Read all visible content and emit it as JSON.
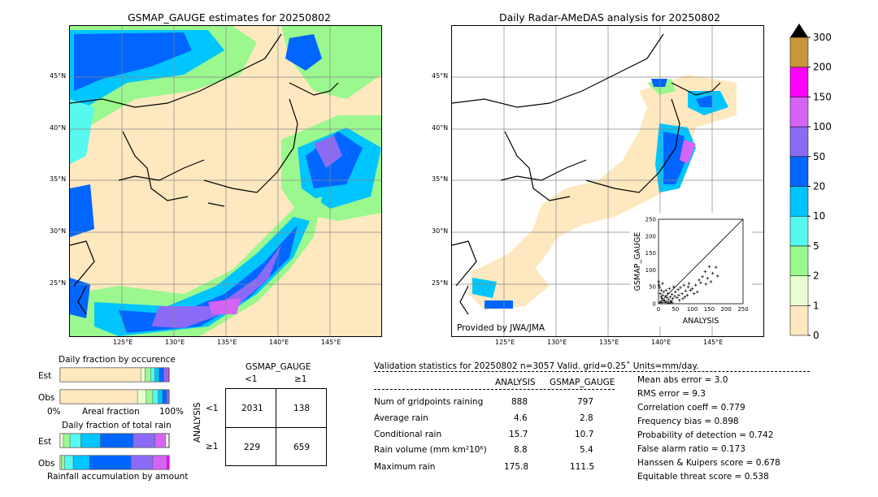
{
  "left_map": {
    "title": "GSMAP_GAUGE estimates for 20250802",
    "lat_labels": [
      "45°N",
      "40°N",
      "35°N",
      "30°N",
      "25°N"
    ],
    "lon_labels": [
      "125°E",
      "130°E",
      "135°E",
      "140°E",
      "145°E"
    ]
  },
  "right_map": {
    "title": "Daily Radar-AMeDAS analysis for 20250802",
    "lat_labels": [
      "45°N",
      "40°N",
      "35°N",
      "30°N",
      "25°N"
    ],
    "lon_labels": [
      "125°E",
      "130°E",
      "135°E",
      "140°E",
      "145°E"
    ],
    "credit": "Provided by JWA/JMA"
  },
  "colorbar": {
    "levels": [
      "0",
      "1",
      "2",
      "5",
      "10",
      "20",
      "50",
      "100",
      "150",
      "200",
      "300"
    ],
    "colors": [
      "#fde8c0",
      "#e9fcd2",
      "#9bf88e",
      "#57f8f0",
      "#00c5ff",
      "#0066ff",
      "#8b6bf5",
      "#d564f5",
      "#ff00ff",
      "#c8963c"
    ],
    "extend_color": "#000000"
  },
  "chart_data": [
    {
      "type": "scatter",
      "xlabel": "ANALYSIS",
      "ylabel": "GSMAP_GAUGE",
      "xlim": [
        0,
        250
      ],
      "ylim": [
        0,
        250
      ],
      "xticks": [
        "0",
        "25",
        "50",
        "75",
        "100",
        "125",
        "150",
        "175",
        "200",
        "225",
        "250"
      ],
      "yticks": [
        "0",
        "25",
        "50",
        "75",
        "100",
        "125",
        "150",
        "175",
        "200",
        "225",
        "250"
      ],
      "diagonal": true,
      "points": [
        [
          2,
          55
        ],
        [
          3,
          48
        ],
        [
          5,
          30
        ],
        [
          8,
          20
        ],
        [
          10,
          15
        ],
        [
          12,
          25
        ],
        [
          15,
          35
        ],
        [
          18,
          10
        ],
        [
          20,
          22
        ],
        [
          22,
          40
        ],
        [
          25,
          18
        ],
        [
          28,
          30
        ],
        [
          30,
          12
        ],
        [
          32,
          45
        ],
        [
          35,
          20
        ],
        [
          38,
          8
        ],
        [
          40,
          28
        ],
        [
          42,
          15
        ],
        [
          45,
          50
        ],
        [
          48,
          22
        ],
        [
          50,
          35
        ],
        [
          55,
          18
        ],
        [
          58,
          42
        ],
        [
          60,
          25
        ],
        [
          62,
          10
        ],
        [
          65,
          48
        ],
        [
          70,
          30
        ],
        [
          72,
          15
        ],
        [
          75,
          55
        ],
        [
          78,
          20
        ],
        [
          80,
          38
        ],
        [
          85,
          25
        ],
        [
          88,
          50
        ],
        [
          90,
          60
        ],
        [
          95,
          40
        ],
        [
          100,
          45
        ],
        [
          105,
          30
        ],
        [
          110,
          55
        ],
        [
          115,
          35
        ],
        [
          120,
          70
        ],
        [
          125,
          62
        ],
        [
          130,
          80
        ],
        [
          138,
          95
        ],
        [
          140,
          58
        ],
        [
          145,
          75
        ],
        [
          150,
          110
        ],
        [
          155,
          65
        ],
        [
          160,
          90
        ],
        [
          170,
          108
        ],
        [
          175,
          82
        ],
        [
          5,
          5
        ],
        [
          10,
          3
        ],
        [
          15,
          8
        ],
        [
          20,
          4
        ],
        [
          25,
          6
        ],
        [
          30,
          2
        ],
        [
          35,
          5
        ],
        [
          40,
          3
        ],
        [
          8,
          40
        ],
        [
          12,
          60
        ],
        [
          1,
          65
        ]
      ]
    },
    {
      "type": "bar",
      "title": "Daily fraction by occurence",
      "categories": [
        "Est",
        "Obs"
      ],
      "xlabel": "Areal fraction",
      "xtick_labels": [
        "0%",
        "100%"
      ],
      "series_colors": [
        "#fde8c0",
        "#e9fcd2",
        "#9bf88e",
        "#57f8f0",
        "#00c5ff",
        "#0066ff",
        "#8b6bf5",
        "#d564f5",
        "#ff00ff",
        "#c8963c"
      ],
      "values": [
        [
          0.74,
          0.04,
          0.05,
          0.04,
          0.04,
          0.04,
          0.03,
          0.015,
          0.005,
          0
        ],
        [
          0.71,
          0.08,
          0.06,
          0.05,
          0.04,
          0.04,
          0.015,
          0.005,
          0,
          0
        ]
      ]
    },
    {
      "type": "bar",
      "title": "Daily fraction of total rain",
      "categories": [
        "Est",
        "Obs"
      ],
      "xlabel": "Rainfall accumulation by amount",
      "series_colors": [
        "#fde8c0",
        "#e9fcd2",
        "#9bf88e",
        "#57f8f0",
        "#00c5ff",
        "#0066ff",
        "#8b6bf5",
        "#d564f5",
        "#ff00ff",
        "#c8963c"
      ],
      "values": [
        [
          0.0,
          0.03,
          0.06,
          0.1,
          0.18,
          0.3,
          0.2,
          0.1,
          0.0,
          0
        ],
        [
          0.0,
          0.01,
          0.03,
          0.08,
          0.15,
          0.38,
          0.2,
          0.13,
          0.02,
          0
        ]
      ]
    },
    {
      "type": "table",
      "title": "GSMAP_GAUGE",
      "col_labels": [
        "<1",
        "≥1"
      ],
      "row_axis": "ANALYSIS",
      "row_labels": [
        "<1",
        "≥1"
      ],
      "cells": [
        [
          "2031",
          "138"
        ],
        [
          "229",
          "659"
        ]
      ]
    }
  ],
  "stats": {
    "header": "Validation statistics for 20250802  n=3057 Valid. grid=0.25˚ Units=mm/day.",
    "col_analysis": "ANALYSIS",
    "col_gsmap": "GSMAP_GAUGE",
    "rows": [
      {
        "label": "Num of gridpoints raining",
        "a": "888",
        "g": "797"
      },
      {
        "label": "Average rain",
        "a": "4.6",
        "g": "2.8"
      },
      {
        "label": "Conditional rain",
        "a": "15.7",
        "g": "10.7"
      },
      {
        "label": "Rain volume (mm km²10⁶)",
        "a": "8.8",
        "g": "5.4"
      },
      {
        "label": "Maximum rain",
        "a": "175.8",
        "g": "111.5"
      }
    ],
    "metrics": [
      "Mean abs error =    3.0",
      "RMS error =    9.3",
      "Correlation coeff =  0.779",
      "Frequency bias =  0.898",
      "Probability of detection =  0.742",
      "False alarm ratio =  0.173",
      "Hanssen & Kuipers score =  0.678",
      "Equitable threat score =  0.538"
    ]
  },
  "labels": {
    "est": "Est",
    "obs": "Obs",
    "zero_pct": "0%",
    "hundred_pct": "100%",
    "areal_fraction": "Areal fraction",
    "rain_acc": "Rainfall accumulation by amount",
    "occ_title": "Daily fraction by occurence",
    "total_title": "Daily fraction of total rain",
    "ct_title": "GSMAP_GAUGE",
    "ct_lt1": "<1",
    "ct_ge1": "≥1",
    "ct_axis": "ANALYSIS"
  }
}
